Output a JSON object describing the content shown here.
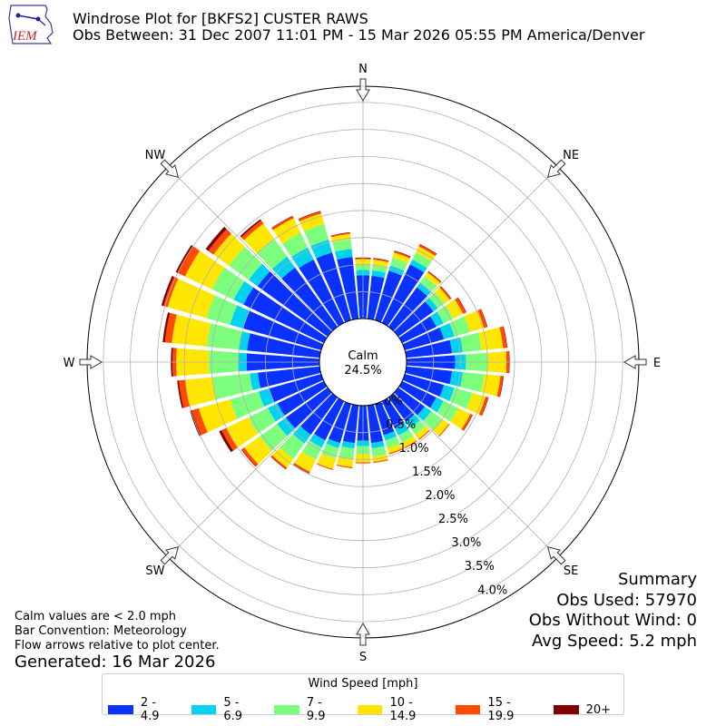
{
  "header": {
    "logo_text": "IEM",
    "title_line1": "Windrose Plot for [BKFS2] CUSTER RAWS",
    "title_line2": "Obs Between: 31 Dec 2007 11:01 PM - 15 Mar 2026 05:55 PM America/Denver"
  },
  "notes": {
    "line1": "Calm values are < 2.0 mph",
    "line2": "Bar Convention: Meteorology",
    "line3": "Flow arrows relative to plot center.",
    "generated": "Generated: 16 Mar 2026"
  },
  "summary": {
    "title": "Summary",
    "obs_used": "Obs Used: 57970",
    "obs_without_wind": "Obs Without Wind: 0",
    "avg_speed": "Avg Speed: 5.2 mph"
  },
  "legend": {
    "title": "Wind Speed [mph]"
  },
  "chart_data": {
    "type": "windrose",
    "calm_label": "Calm",
    "calm_value": "24.5%",
    "direction_labels": [
      "N",
      "NE",
      "E",
      "SE",
      "S",
      "SW",
      "W",
      "NW"
    ],
    "radial_ticks": [
      "0.0%",
      "0.5%",
      "1.0%",
      "1.5%",
      "2.0%",
      "2.5%",
      "3.0%",
      "3.5%",
      "4.0%"
    ],
    "radial_max": 4.3,
    "bin_labels": [
      "2 - 4.9",
      "5 - 6.9",
      "7 - 9.9",
      "10 - 14.9",
      "15 - 19.9",
      "20+"
    ],
    "bin_colors": [
      "#0a32ff",
      "#00d2f0",
      "#7dff7d",
      "#ffe600",
      "#ff4b00",
      "#800000"
    ],
    "directions_deg": [
      0,
      10,
      20,
      30,
      40,
      50,
      60,
      70,
      80,
      90,
      100,
      110,
      120,
      130,
      140,
      150,
      160,
      170,
      180,
      190,
      200,
      210,
      220,
      230,
      240,
      250,
      260,
      270,
      280,
      290,
      300,
      310,
      320,
      330,
      340,
      350
    ],
    "cumulative": [
      [
        0.8,
        0.9,
        1.0,
        1.1,
        1.12,
        1.13
      ],
      [
        0.8,
        0.9,
        1.0,
        1.1,
        1.12,
        1.13
      ],
      [
        0.95,
        1.05,
        1.2,
        1.3,
        1.33,
        1.34
      ],
      [
        1.2,
        1.3,
        1.45,
        1.57,
        1.61,
        1.62
      ],
      [
        0.9,
        1.0,
        1.15,
        1.24,
        1.26,
        1.27
      ],
      [
        0.8,
        0.9,
        1.05,
        1.17,
        1.2,
        1.21
      ],
      [
        0.7,
        0.85,
        1.05,
        1.25,
        1.31,
        1.32
      ],
      [
        0.75,
        0.95,
        1.25,
        1.52,
        1.58,
        1.59
      ],
      [
        0.85,
        1.05,
        1.4,
        1.8,
        1.87,
        1.88
      ],
      [
        0.9,
        1.1,
        1.5,
        1.85,
        1.9,
        1.91
      ],
      [
        0.85,
        1.05,
        1.45,
        1.75,
        1.8,
        1.81
      ],
      [
        0.75,
        0.95,
        1.3,
        1.55,
        1.6,
        1.61
      ],
      [
        0.7,
        0.85,
        1.15,
        1.4,
        1.44,
        1.45
      ],
      [
        0.6,
        0.75,
        1.0,
        1.15,
        1.17,
        1.17
      ],
      [
        0.55,
        0.7,
        0.85,
        0.95,
        0.97,
        0.97
      ],
      [
        0.55,
        0.7,
        0.85,
        0.95,
        0.97,
        0.97
      ],
      [
        0.6,
        0.7,
        0.85,
        0.95,
        0.97,
        0.97
      ],
      [
        0.7,
        0.8,
        0.95,
        1.05,
        1.07,
        1.07
      ],
      [
        0.65,
        0.75,
        0.9,
        1.05,
        1.07,
        1.07
      ],
      [
        0.7,
        0.8,
        1.0,
        1.15,
        1.17,
        1.17
      ],
      [
        0.75,
        0.85,
        1.05,
        1.25,
        1.27,
        1.27
      ],
      [
        0.8,
        0.95,
        1.2,
        1.45,
        1.48,
        1.49
      ],
      [
        0.85,
        1.05,
        1.4,
        1.6,
        1.63,
        1.64
      ],
      [
        0.95,
        1.15,
        1.55,
        1.9,
        1.96,
        1.97
      ],
      [
        0.95,
        1.15,
        1.55,
        2.0,
        2.1,
        2.15
      ],
      [
        1.0,
        1.2,
        1.75,
        2.35,
        2.48,
        2.52
      ],
      [
        1.15,
        1.3,
        2.0,
        2.5,
        2.62,
        2.65
      ],
      [
        1.35,
        1.5,
        2.05,
        2.65,
        2.72,
        2.75
      ],
      [
        1.35,
        1.5,
        2.1,
        2.75,
        2.88,
        2.92
      ],
      [
        1.5,
        1.75,
        2.2,
        2.95,
        3.03,
        3.07
      ],
      [
        1.65,
        1.85,
        2.3,
        2.85,
        3.0,
        3.04
      ],
      [
        1.6,
        1.8,
        2.25,
        2.6,
        2.72,
        2.78
      ],
      [
        1.35,
        1.6,
        2.0,
        2.35,
        2.42,
        2.45
      ],
      [
        1.3,
        1.55,
        1.85,
        2.15,
        2.19,
        2.2
      ],
      [
        1.3,
        1.55,
        1.85,
        2.05,
        2.09,
        2.1
      ],
      [
        1.15,
        1.3,
        1.48,
        1.58,
        1.6,
        1.61
      ]
    ]
  }
}
